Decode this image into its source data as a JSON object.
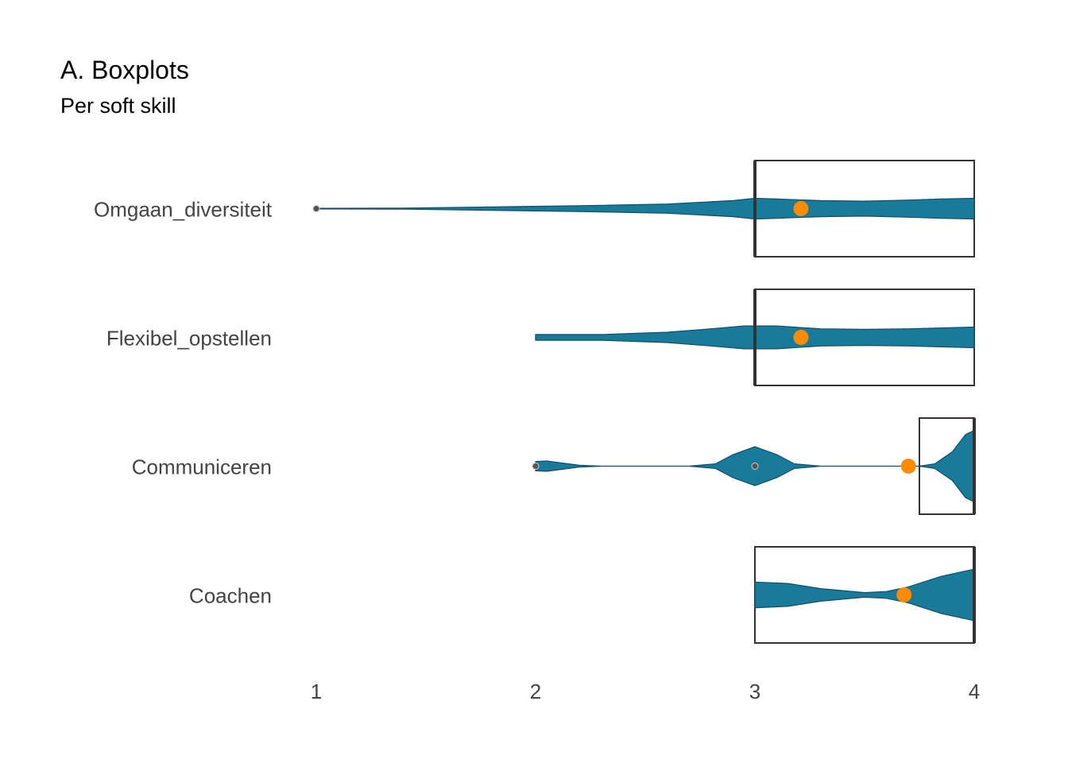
{
  "chart_data": {
    "type": "boxplot",
    "title": "A. Boxplots",
    "subtitle": "Per soft skill",
    "xlabel": "",
    "ylabel": "",
    "xlim": [
      1,
      4
    ],
    "x_ticks": [
      "1",
      "2",
      "3",
      "4"
    ],
    "grid": false,
    "categories": [
      "Omgaan_diversiteit",
      "Flexibel_opstellen",
      "Communiceren",
      "Coachen"
    ],
    "boxes": [
      {
        "category": "Omgaan_diversiteit",
        "q1": 3,
        "median": 3,
        "q3": 4,
        "whisker_low": 1,
        "whisker_high": 4,
        "mean": 3.21,
        "outliers": [
          1
        ],
        "density": [
          [
            1.0,
            0.01
          ],
          [
            1.4,
            0.02
          ],
          [
            1.8,
            0.06
          ],
          [
            2.2,
            0.1
          ],
          [
            2.6,
            0.16
          ],
          [
            2.9,
            0.28
          ],
          [
            3.0,
            0.36
          ],
          [
            3.1,
            0.34
          ],
          [
            3.3,
            0.28
          ],
          [
            3.5,
            0.26
          ],
          [
            3.7,
            0.3
          ],
          [
            3.85,
            0.34
          ],
          [
            4.0,
            0.36
          ]
        ]
      },
      {
        "category": "Flexibel_opstellen",
        "q1": 3,
        "median": 3,
        "q3": 4,
        "whisker_low": 2,
        "whisker_high": 4,
        "mean": 3.21,
        "outliers": [],
        "density": [
          [
            2.0,
            0.1
          ],
          [
            2.3,
            0.1
          ],
          [
            2.6,
            0.18
          ],
          [
            2.8,
            0.3
          ],
          [
            2.95,
            0.4
          ],
          [
            3.1,
            0.4
          ],
          [
            3.3,
            0.3
          ],
          [
            3.5,
            0.28
          ],
          [
            3.7,
            0.3
          ],
          [
            3.85,
            0.33
          ],
          [
            4.0,
            0.36
          ]
        ]
      },
      {
        "category": "Communiceren",
        "q1": 3.75,
        "median": 4,
        "q3": 4,
        "whisker_low": 3.75,
        "whisker_high": 4,
        "mean": 3.7,
        "outliers": [
          2,
          3
        ],
        "density": [
          [
            2.0,
            0.16
          ],
          [
            2.05,
            0.18
          ],
          [
            2.15,
            0.08
          ],
          [
            2.2,
            0.03
          ],
          [
            2.3,
            0.0
          ],
          [
            2.7,
            0.0
          ],
          [
            2.82,
            0.08
          ],
          [
            2.9,
            0.4
          ],
          [
            3.0,
            0.68
          ],
          [
            3.1,
            0.4
          ],
          [
            3.18,
            0.08
          ],
          [
            3.3,
            0.0
          ],
          [
            3.75,
            0.0
          ],
          [
            3.82,
            0.08
          ],
          [
            3.9,
            0.5
          ],
          [
            3.96,
            1.1
          ],
          [
            4.0,
            1.25
          ]
        ]
      },
      {
        "category": "Coachen",
        "q1": 3,
        "median": 4,
        "q3": 4,
        "whisker_low": 3,
        "whisker_high": 4,
        "mean": 3.68,
        "outliers": [],
        "density": [
          [
            3.0,
            0.45
          ],
          [
            3.15,
            0.4
          ],
          [
            3.3,
            0.22
          ],
          [
            3.5,
            0.08
          ],
          [
            3.6,
            0.12
          ],
          [
            3.7,
            0.28
          ],
          [
            3.85,
            0.65
          ],
          [
            4.0,
            0.9
          ]
        ]
      }
    ],
    "colors": {
      "violin": "#1a7a9a",
      "violin_stroke": "#0e5068",
      "mean_point": "#ff8c00",
      "box_stroke": "#333333"
    }
  }
}
